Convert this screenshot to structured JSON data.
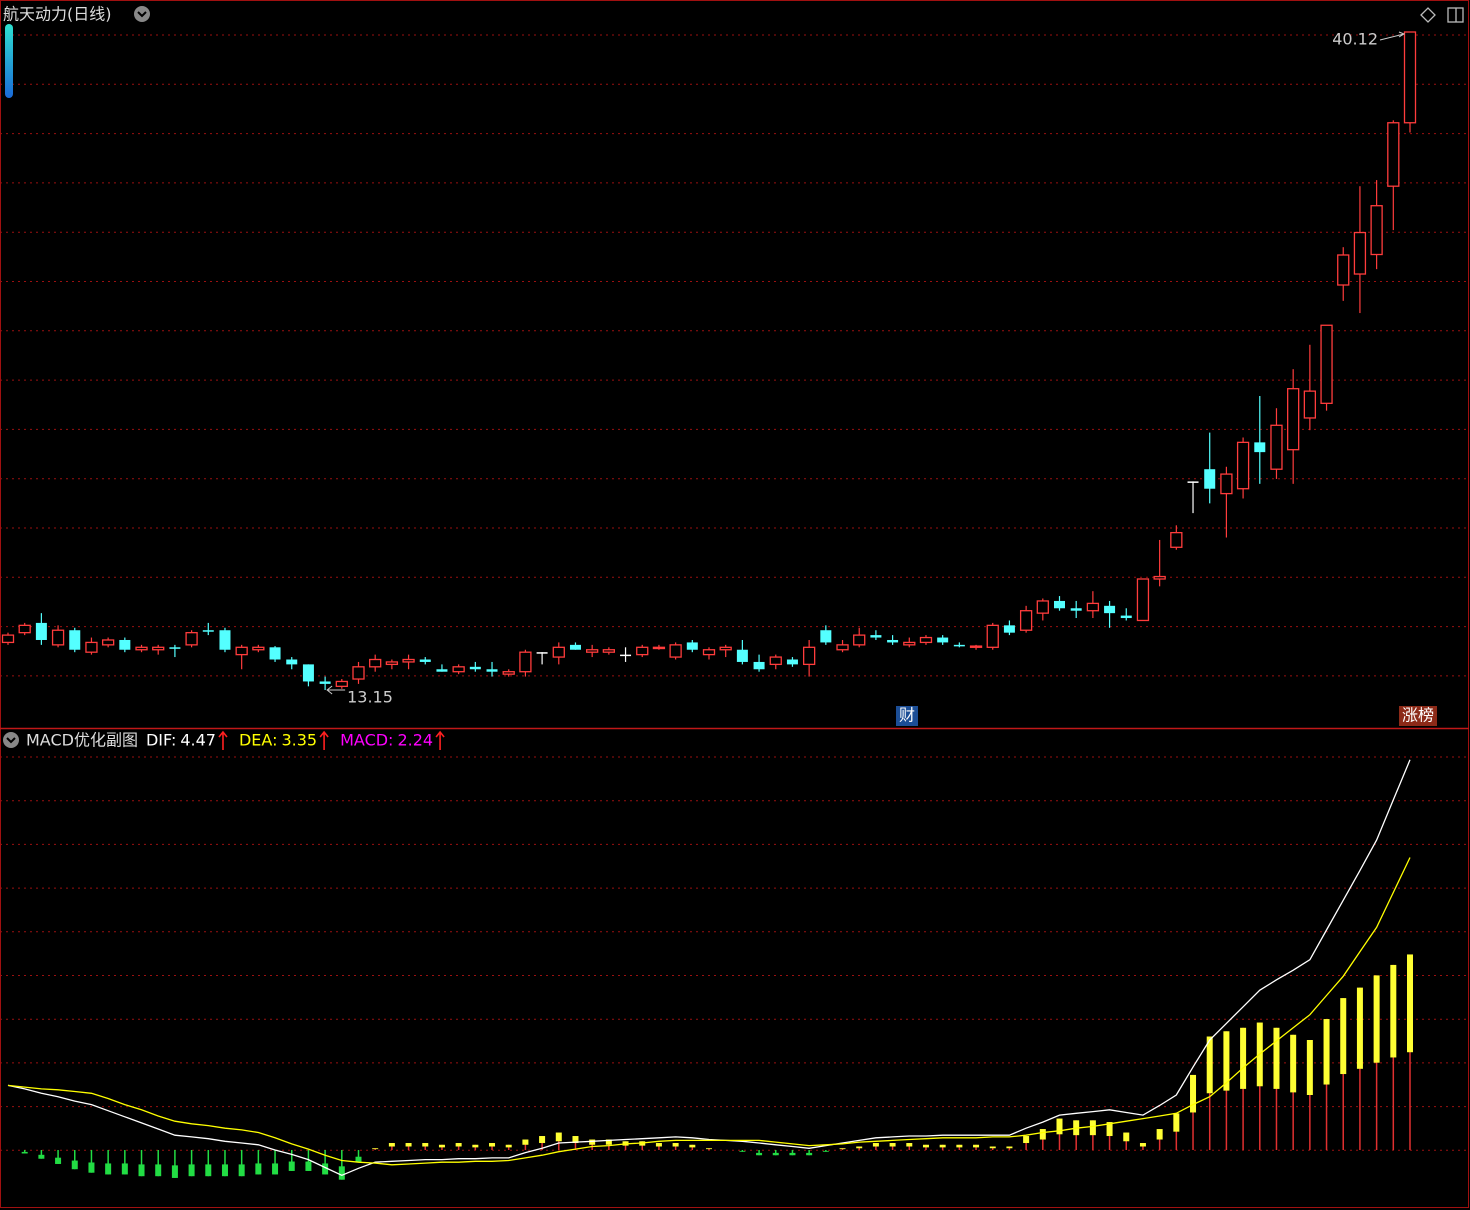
{
  "chart_data": [
    {
      "type": "candlestick",
      "title": "航天动力(日线)",
      "open": [
        15.1,
        15.5,
        15.9,
        15.0,
        15.6,
        14.7,
        15.0,
        15.2,
        14.8,
        14.8,
        14.9,
        15.0,
        15.6,
        15.6,
        14.6,
        14.8,
        14.9,
        14.4,
        14.2,
        13.5,
        13.3,
        13.6,
        14.1,
        14.2,
        14.3,
        14.4,
        14.0,
        13.9,
        14.1,
        14.0,
        13.8,
        13.9,
        14.7,
        14.5,
        15.0,
        14.7,
        14.7,
        14.6,
        14.6,
        14.85,
        14.5,
        15.1,
        14.6,
        14.8,
        14.8,
        14.3,
        14.2,
        14.4,
        14.2,
        15.6,
        14.8,
        15.0,
        15.4,
        15.2,
        15.0,
        15.1,
        15.3,
        15.0,
        14.9,
        14.9,
        15.8,
        15.6,
        16.3,
        16.8,
        16.5,
        16.4,
        16.6,
        16.2,
        16.0,
        17.7,
        19.0,
        21.7,
        22.2,
        21.2,
        21.4,
        23.3,
        22.2,
        23.0,
        24.3,
        24.9,
        29.75,
        30.2,
        31.0,
        33.8,
        36.4
      ],
      "high": [
        15.5,
        15.9,
        16.3,
        15.8,
        15.7,
        15.3,
        15.3,
        15.3,
        15.0,
        15.0,
        15.0,
        15.6,
        15.9,
        15.7,
        15.0,
        15.0,
        14.95,
        14.5,
        14.2,
        13.7,
        13.6,
        14.3,
        14.6,
        14.4,
        14.6,
        14.5,
        14.2,
        14.2,
        14.3,
        14.3,
        14.0,
        14.8,
        14.7,
        15.1,
        15.1,
        15.0,
        14.9,
        14.9,
        15.0,
        15.0,
        15.1,
        15.2,
        14.9,
        15.0,
        15.2,
        14.6,
        14.6,
        14.5,
        15.2,
        15.8,
        15.2,
        15.7,
        15.6,
        15.4,
        15.3,
        15.4,
        15.4,
        15.1,
        15.0,
        15.9,
        16.0,
        16.6,
        16.9,
        17.0,
        16.8,
        17.2,
        16.8,
        16.5,
        17.7,
        19.3,
        19.9,
        21.7,
        23.7,
        22.3,
        23.5,
        25.2,
        24.7,
        26.3,
        27.3,
        28.1,
        31.3,
        33.8,
        34.05,
        36.5,
        40.12
      ],
      "low": [
        15.0,
        15.4,
        15.0,
        14.9,
        14.7,
        14.6,
        14.9,
        14.7,
        14.7,
        14.6,
        14.5,
        14.9,
        15.4,
        14.7,
        14.0,
        14.7,
        14.3,
        14.0,
        13.3,
        13.15,
        13.2,
        13.4,
        13.9,
        14.0,
        14.0,
        14.2,
        13.9,
        13.8,
        13.9,
        13.7,
        13.7,
        13.7,
        14.2,
        14.2,
        14.8,
        14.5,
        14.6,
        14.3,
        14.5,
        14.8,
        14.4,
        14.7,
        14.4,
        14.5,
        14.2,
        13.9,
        14.0,
        14.1,
        13.7,
        15.0,
        14.7,
        14.9,
        15.2,
        15.0,
        14.9,
        15.0,
        15.0,
        14.9,
        14.8,
        14.8,
        15.4,
        15.5,
        16.0,
        16.4,
        16.1,
        16.1,
        15.7,
        16.0,
        16.0,
        17.4,
        18.9,
        20.4,
        20.8,
        19.4,
        21.0,
        21.6,
        21.8,
        21.6,
        23.8,
        24.6,
        29.1,
        28.6,
        30.4,
        32.0,
        36.0
      ],
      "close": [
        15.4,
        15.8,
        15.2,
        15.6,
        14.8,
        15.1,
        15.2,
        14.8,
        14.9,
        14.9,
        14.85,
        15.5,
        15.55,
        14.8,
        14.9,
        14.9,
        14.4,
        14.2,
        13.5,
        13.4,
        13.5,
        14.1,
        14.4,
        14.3,
        14.4,
        14.3,
        13.9,
        14.1,
        14.0,
        13.9,
        13.9,
        14.7,
        14.7,
        14.9,
        14.8,
        14.8,
        14.8,
        14.6,
        14.9,
        14.9,
        15.0,
        14.8,
        14.8,
        14.9,
        14.3,
        14.0,
        14.5,
        14.2,
        14.9,
        15.1,
        15.0,
        15.4,
        15.3,
        15.1,
        15.1,
        15.3,
        15.1,
        14.95,
        14.95,
        15.8,
        15.5,
        16.4,
        16.8,
        16.5,
        16.4,
        16.7,
        16.3,
        16.1,
        17.7,
        17.8,
        19.6,
        21.7,
        21.4,
        22.0,
        23.3,
        22.9,
        24.0,
        25.5,
        25.4,
        28.1,
        30.98,
        31.9,
        33.0,
        36.4,
        40.12
      ],
      "up_color": "#ff3c3c",
      "down_color": "#54ffff",
      "flat_color": "#ffffff",
      "annotations": [
        "财",
        "涨榜"
      ]
    },
    {
      "type": "macd",
      "title": "MACD优化副图",
      "series": [
        {
          "name": "DIF:",
          "color": "#ffffff",
          "values": [
            0.74,
            0.7,
            0.65,
            0.61,
            0.56,
            0.52,
            0.45,
            0.38,
            0.31,
            0.24,
            0.17,
            0.15,
            0.13,
            0.1,
            0.08,
            0.06,
            0.0,
            -0.05,
            -0.11,
            -0.2,
            -0.29,
            -0.21,
            -0.14,
            -0.13,
            -0.12,
            -0.11,
            -0.11,
            -0.1,
            -0.1,
            -0.09,
            -0.09,
            -0.03,
            0.02,
            0.08,
            0.09,
            0.1,
            0.11,
            0.12,
            0.13,
            0.14,
            0.15,
            0.14,
            0.12,
            0.11,
            0.1,
            0.08,
            0.06,
            0.04,
            0.02,
            0.05,
            0.08,
            0.11,
            0.14,
            0.15,
            0.16,
            0.16,
            0.17,
            0.17,
            0.17,
            0.17,
            0.17,
            0.25,
            0.32,
            0.4,
            0.42,
            0.44,
            0.46,
            0.43,
            0.4,
            0.51,
            0.63,
            0.95,
            1.26,
            1.45,
            1.64,
            1.83,
            1.95,
            2.06,
            2.18,
            2.52,
            2.86,
            3.2,
            3.55,
            4.01,
            4.47
          ]
        },
        {
          "name": "DEA:",
          "color": "#ffff00",
          "values": [
            0.74,
            0.72,
            0.7,
            0.69,
            0.67,
            0.65,
            0.59,
            0.52,
            0.46,
            0.39,
            0.33,
            0.3,
            0.28,
            0.25,
            0.23,
            0.2,
            0.14,
            0.07,
            0.01,
            -0.06,
            -0.12,
            -0.14,
            -0.15,
            -0.17,
            -0.16,
            -0.15,
            -0.14,
            -0.14,
            -0.13,
            -0.13,
            -0.12,
            -0.09,
            -0.06,
            -0.02,
            0.01,
            0.04,
            0.05,
            0.07,
            0.08,
            0.1,
            0.11,
            0.11,
            0.11,
            0.11,
            0.11,
            0.11,
            0.09,
            0.07,
            0.05,
            0.06,
            0.07,
            0.09,
            0.1,
            0.11,
            0.12,
            0.13,
            0.14,
            0.14,
            0.14,
            0.15,
            0.15,
            0.17,
            0.2,
            0.22,
            0.25,
            0.27,
            0.3,
            0.33,
            0.36,
            0.39,
            0.42,
            0.52,
            0.61,
            0.77,
            0.94,
            1.1,
            1.25,
            1.4,
            1.55,
            1.77,
            1.99,
            2.27,
            2.55,
            2.95,
            3.35
          ]
        },
        {
          "name": "MACD:",
          "color": "#ff00ff",
          "values": [
            0.0,
            -0.04,
            -0.1,
            -0.16,
            -0.22,
            -0.26,
            -0.28,
            -0.28,
            -0.3,
            -0.3,
            -0.32,
            -0.3,
            -0.3,
            -0.3,
            -0.3,
            -0.28,
            -0.28,
            -0.24,
            -0.24,
            -0.28,
            -0.34,
            -0.14,
            0.02,
            0.08,
            0.08,
            0.08,
            0.06,
            0.08,
            0.06,
            0.08,
            0.06,
            0.12,
            0.16,
            0.2,
            0.16,
            0.12,
            0.12,
            0.1,
            0.1,
            0.08,
            0.08,
            0.06,
            0.02,
            0.0,
            -0.02,
            -0.06,
            -0.06,
            -0.06,
            -0.06,
            -0.02,
            0.02,
            0.04,
            0.08,
            0.08,
            0.08,
            0.06,
            0.06,
            0.06,
            0.06,
            0.04,
            0.04,
            0.16,
            0.24,
            0.36,
            0.34,
            0.34,
            0.32,
            0.2,
            0.08,
            0.24,
            0.42,
            0.86,
            1.3,
            1.36,
            1.4,
            1.46,
            1.4,
            1.32,
            1.26,
            1.5,
            1.74,
            1.86,
            2.0,
            2.12,
            2.24
          ]
        }
      ],
      "hist_up_color": "#e03030",
      "hist_cap_color": "#ffff33",
      "hist_down_color": "#22dd44"
    }
  ]
}
